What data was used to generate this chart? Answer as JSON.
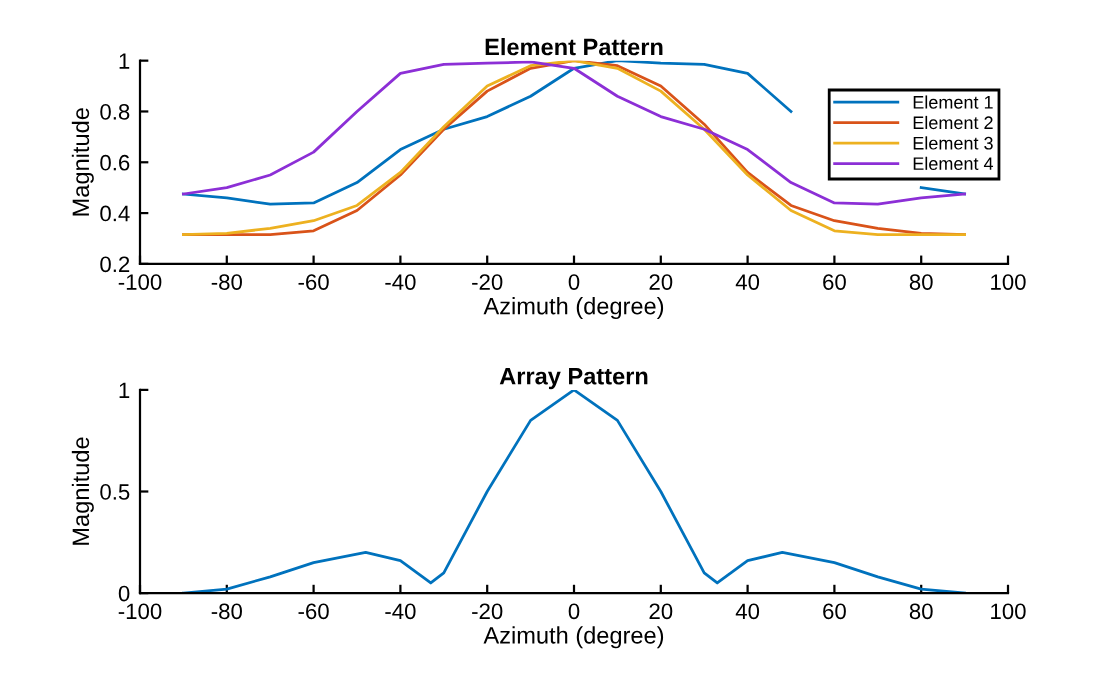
{
  "chart_data": [
    {
      "type": "line",
      "title": "Element Pattern",
      "xlabel": "Azimuth (degree)",
      "ylabel": "Magnitude",
      "x": [
        -90,
        -80,
        -70,
        -60,
        -50,
        -40,
        -30,
        -20,
        -10,
        0,
        10,
        20,
        30,
        40,
        50,
        60,
        70,
        80,
        90
      ],
      "series": [
        {
          "name": "Element 1",
          "color": "#0072bd",
          "values": [
            0.475,
            0.46,
            0.435,
            0.44,
            0.52,
            0.65,
            0.73,
            0.78,
            0.86,
            0.97,
            1.0,
            0.99,
            0.985,
            0.95,
            0.8,
            null,
            null,
            0.5,
            0.475
          ]
        },
        {
          "name": "Element 2",
          "color": "#d95319",
          "values": [
            0.315,
            0.315,
            0.315,
            0.33,
            0.41,
            0.55,
            0.73,
            0.88,
            0.97,
            1.0,
            0.98,
            0.9,
            0.75,
            0.56,
            0.43,
            0.37,
            0.34,
            0.32,
            0.315
          ]
        },
        {
          "name": "Element 3",
          "color": "#edb120",
          "values": [
            0.315,
            0.32,
            0.34,
            0.37,
            0.43,
            0.56,
            0.74,
            0.9,
            0.98,
            1.0,
            0.97,
            0.88,
            0.73,
            0.55,
            0.41,
            0.33,
            0.315,
            0.315,
            0.315
          ]
        },
        {
          "name": "Element 4",
          "color": "#8c2fd6",
          "values": [
            0.475,
            0.5,
            0.55,
            0.64,
            0.8,
            0.95,
            0.985,
            0.99,
            0.995,
            0.97,
            0.86,
            0.78,
            0.73,
            0.65,
            0.52,
            0.44,
            0.435,
            0.46,
            0.475
          ]
        }
      ],
      "xlim": [
        -100,
        100
      ],
      "xticks": [
        -100,
        -80,
        -60,
        -40,
        -20,
        0,
        20,
        40,
        60,
        80,
        100
      ],
      "ylim": [
        0.2,
        1
      ],
      "yticks": [
        0.2,
        0.4,
        0.6,
        0.8,
        1
      ],
      "legend": "top right"
    },
    {
      "type": "line",
      "title": "Array Pattern",
      "xlabel": "Azimuth (degree)",
      "ylabel": "Magnitude",
      "x": [
        -90,
        -80,
        -70,
        -60,
        -48,
        -40,
        -33,
        -30,
        -20,
        -10,
        0,
        10,
        20,
        30,
        33,
        40,
        48,
        60,
        70,
        80,
        90
      ],
      "series": [
        {
          "color": "#0072bd",
          "values": [
            0,
            0.02,
            0.08,
            0.15,
            0.2,
            0.16,
            0.05,
            0.1,
            0.5,
            0.85,
            1.0,
            0.85,
            0.5,
            0.1,
            0.05,
            0.16,
            0.2,
            0.15,
            0.08,
            0.02,
            0
          ]
        }
      ],
      "xlim": [
        -100,
        100
      ],
      "xticks": [
        -100,
        -80,
        -60,
        -40,
        -20,
        0,
        20,
        40,
        60,
        80,
        100
      ],
      "ylim": [
        0,
        1
      ],
      "yticks": [
        0,
        0.5,
        1
      ]
    }
  ]
}
